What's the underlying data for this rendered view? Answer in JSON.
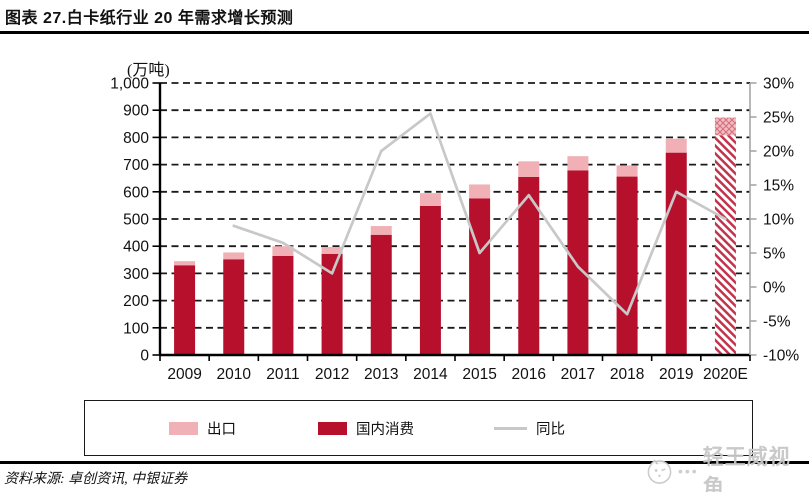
{
  "page": {
    "title": "图表 27.白卡纸行业 20 年需求增长预测",
    "source": "资料来源: 卓创资讯, 中银证券",
    "watermark": "轻王威视角"
  },
  "chart_data": {
    "type": "bar",
    "title": "白卡纸行业20年需求增长预测",
    "categories": [
      "2009",
      "2010",
      "2011",
      "2012",
      "2013",
      "2014",
      "2015",
      "2016",
      "2017",
      "2018",
      "2019",
      "2020E"
    ],
    "series": [
      {
        "name": "国内消费",
        "type": "bar",
        "stack": "demand",
        "color": "#b6102d",
        "values": [
          330,
          352,
          364,
          372,
          442,
          548,
          576,
          655,
          679,
          656,
          744,
          808
        ]
      },
      {
        "name": "出口",
        "type": "bar",
        "stack": "demand",
        "color": "#f0b0b5",
        "values": [
          15,
          25,
          36,
          25,
          32,
          47,
          51,
          57,
          52,
          41,
          51,
          65
        ]
      },
      {
        "name": "同比",
        "type": "line",
        "axis": "right",
        "color": "#c8c8c8",
        "unit": "%",
        "values": [
          null,
          9,
          6.5,
          2,
          20,
          25.5,
          5,
          13.5,
          3,
          -4,
          14,
          10
        ]
      }
    ],
    "left_axis": {
      "unit_label": "(万吨)",
      "min": 0,
      "max": 1000,
      "ticks": [
        0,
        100,
        200,
        300,
        400,
        500,
        600,
        700,
        800,
        900,
        1000
      ],
      "tick_labels": [
        "0",
        "100",
        "200",
        "300",
        "400",
        "500",
        "600",
        "700",
        "800",
        "900",
        "1,000"
      ]
    },
    "right_axis": {
      "min": -10,
      "max": 30,
      "ticks": [
        -10,
        -5,
        0,
        5,
        10,
        15,
        20,
        25,
        30
      ],
      "tick_labels": [
        "-10%",
        "-5%",
        "0%",
        "5%",
        "10%",
        "15%",
        "20%",
        "25%",
        "30%"
      ]
    },
    "legend": {
      "position": "bottom",
      "entries": [
        "出口",
        "国内消费",
        "同比"
      ]
    },
    "forecast_category": "2020E",
    "grid": "horizontal-dashed",
    "colors": {
      "grid": "#1a1a1a",
      "left_spine": "#000000",
      "right_spine": "#a6a6a6",
      "text": "#111111"
    }
  },
  "legend_box": {
    "items": [
      {
        "label": "出口",
        "type": "bar",
        "color": "#f0b0b5"
      },
      {
        "label": "国内消费",
        "type": "bar",
        "color": "#b6102d"
      },
      {
        "label": "同比",
        "type": "line",
        "color": "#c8c8c8"
      }
    ]
  }
}
